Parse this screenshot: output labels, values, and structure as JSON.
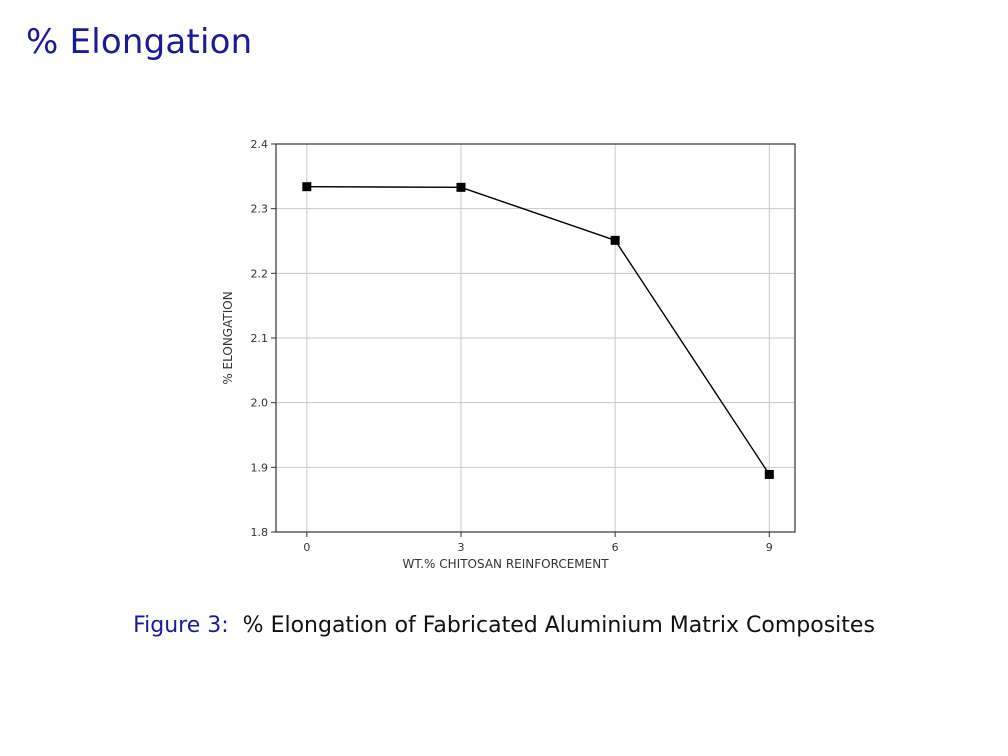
{
  "slide": {
    "title": "% Elongation"
  },
  "caption": {
    "label": "Figure 3:",
    "text": "% Elongation of Fabricated Aluminium Matrix Composites"
  },
  "chart_data": {
    "type": "line",
    "title": "",
    "xlabel": "WT.% CHITOSAN REINFORCEMENT",
    "ylabel": "% ELONGATION",
    "x": [
      0,
      3,
      6,
      9
    ],
    "series": [
      {
        "values": [
          2.334,
          2.333,
          2.251,
          1.889
        ]
      }
    ],
    "xticks": [
      "0",
      "3",
      "6",
      "9"
    ],
    "yticks": [
      "1.8",
      "1.9",
      "2.0",
      "2.1",
      "2.2",
      "2.3",
      "2.4"
    ],
    "xlim": [
      -0.6,
      9.5
    ],
    "ylim": [
      1.8,
      2.4
    ],
    "grid": true,
    "marker": "square",
    "line_color": "#000000",
    "grid_color": "#c8c8c8"
  }
}
